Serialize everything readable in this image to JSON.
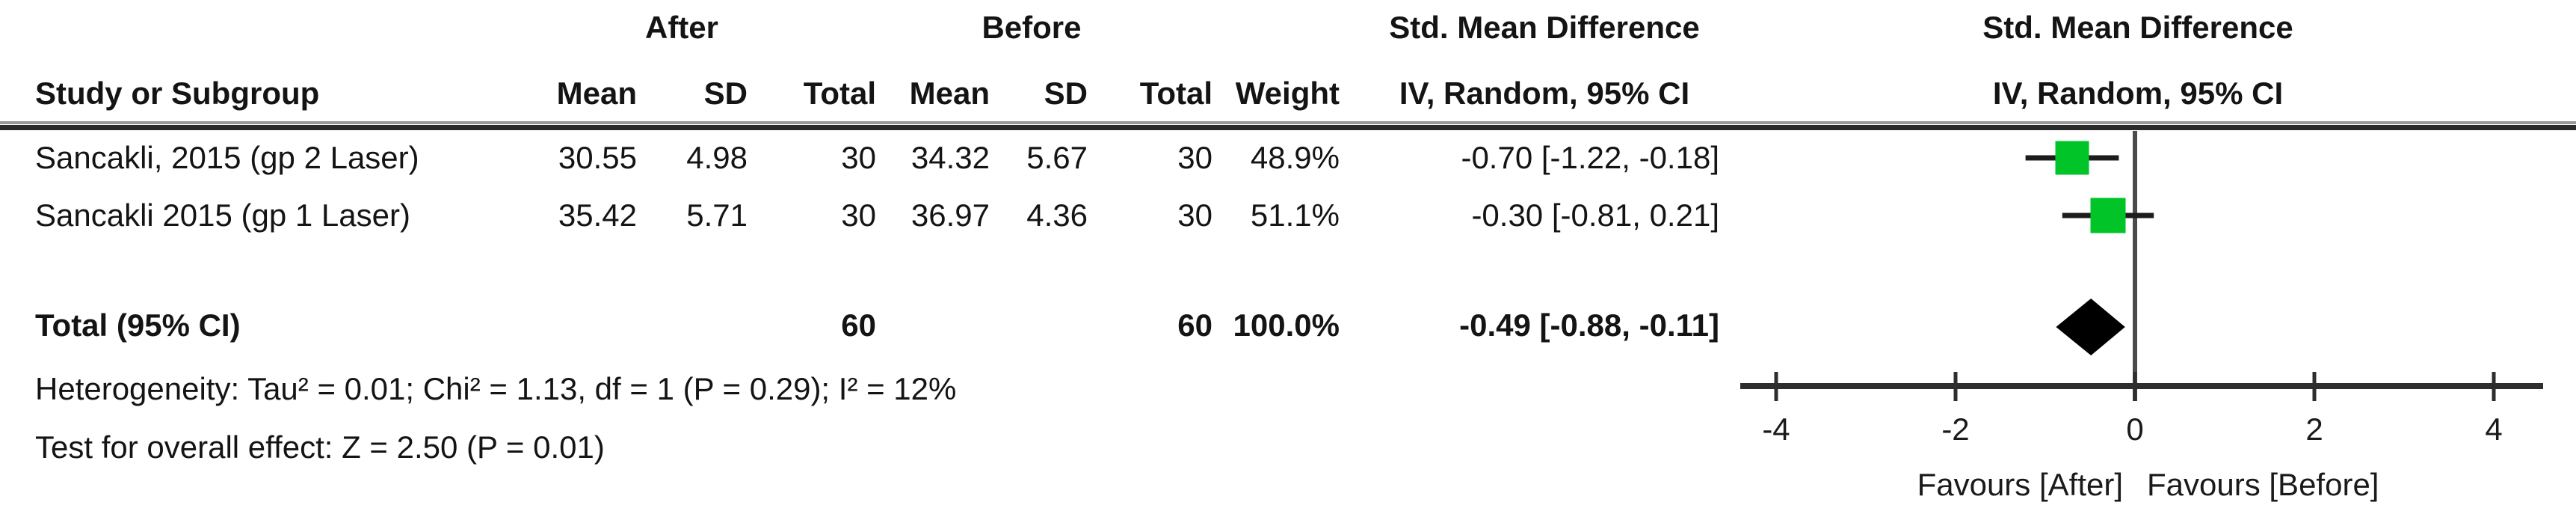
{
  "header": {
    "group_after": "After",
    "group_before": "Before",
    "smd_col_title": "Std. Mean Difference",
    "smd_plot_title": "Std. Mean Difference",
    "study": "Study or Subgroup",
    "mean_after": "Mean",
    "sd_after": "SD",
    "total_after": "Total",
    "mean_before": "Mean",
    "sd_before": "SD",
    "total_before": "Total",
    "weight": "Weight",
    "iv_col": "IV, Random, 95% CI",
    "iv_plot": "IV, Random, 95% CI"
  },
  "rows": [
    {
      "study": "Sancakli, 2015 (gp 2 Laser)",
      "mean_after": "30.55",
      "sd_after": "4.98",
      "total_after": "30",
      "mean_before": "34.32",
      "sd_before": "5.67",
      "total_before": "30",
      "weight": "48.9%",
      "smd_ci": "-0.70 [-1.22, -0.18]"
    },
    {
      "study": "Sancakli 2015 (gp 1 Laser)",
      "mean_after": "35.42",
      "sd_after": "5.71",
      "total_after": "30",
      "mean_before": "36.97",
      "sd_before": "4.36",
      "total_before": "30",
      "weight": "51.1%",
      "smd_ci": "-0.30 [-0.81, 0.21]"
    }
  ],
  "total_row": {
    "label": "Total (95% CI)",
    "total_after": "60",
    "total_before": "60",
    "weight": "100.0%",
    "smd_ci": "-0.49 [-0.88, -0.11]"
  },
  "footer": {
    "heterogeneity": "Heterogeneity: Tau² = 0.01; Chi² = 1.13, df = 1 (P = 0.29); I² = 12%",
    "overall_effect": "Test for overall effect: Z = 2.50 (P = 0.01)"
  },
  "axis": {
    "ticks": [
      "-4",
      "-2",
      "0",
      "2",
      "4"
    ],
    "favours_left": "Favours [After]",
    "favours_right": "Favours [Before]"
  },
  "chart_data": {
    "type": "scatter",
    "subtype": "forest-plot",
    "title": "Std. Mean Difference IV, Random, 95% CI",
    "xlabel": "",
    "x_ticks": [
      -4,
      -2,
      0,
      2,
      4
    ],
    "xlim": [
      -4.4,
      4.55
    ],
    "zero_line": 0,
    "studies": [
      {
        "name": "Sancakli, 2015 (gp 2 Laser)",
        "smd": -0.7,
        "ci_low": -1.22,
        "ci_high": -0.18,
        "weight_pct": 48.9
      },
      {
        "name": "Sancakli 2015 (gp 1 Laser)",
        "smd": -0.3,
        "ci_low": -0.81,
        "ci_high": 0.21,
        "weight_pct": 51.1
      }
    ],
    "total": {
      "smd": -0.49,
      "ci_low": -0.88,
      "ci_high": -0.11,
      "weight_pct": 100.0,
      "n_after": 60,
      "n_before": 60
    },
    "heterogeneity": {
      "tau2": 0.01,
      "chi2": 1.13,
      "df": 1,
      "p": 0.29,
      "i2_pct": 12
    },
    "overall_effect": {
      "z": 2.5,
      "p": 0.01
    },
    "favours_left": "Favours [After]",
    "favours_right": "Favours [Before]",
    "marker_color": "#00C428",
    "diamond_color": "#000000",
    "line_color": "#1c1c1c"
  }
}
